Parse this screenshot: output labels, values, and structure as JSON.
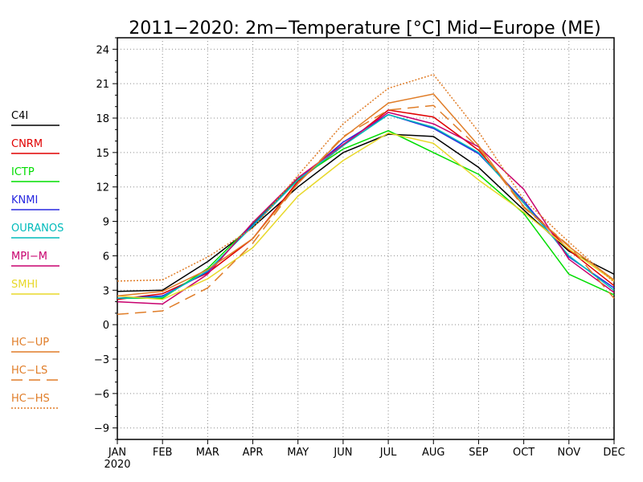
{
  "chart_data": {
    "type": "line",
    "title": "2011−2020: 2m−Temperature [°C] Mid−Europe (ME)",
    "xlabel": "",
    "ylabel": "",
    "categories": [
      "JAN",
      "FEB",
      "MAR",
      "APR",
      "MAY",
      "JUN",
      "JUL",
      "AUG",
      "SEP",
      "OCT",
      "NOV",
      "DEC"
    ],
    "x_year_label": "2020",
    "ylim": [
      -10,
      25
    ],
    "yticks": [
      -9,
      -6,
      -3,
      0,
      3,
      6,
      9,
      12,
      15,
      18,
      21,
      24
    ],
    "ytick_labels": [
      "−9",
      "−6",
      "−3",
      "0",
      "3",
      "6",
      "9",
      "12",
      "15",
      "18",
      "21",
      "24"
    ],
    "grid": true,
    "legend_position": "left",
    "series": [
      {
        "name": "C4I",
        "color": "#000000",
        "dash": "solid",
        "values": [
          2.9,
          3.0,
          5.5,
          8.5,
          12.0,
          15.0,
          16.6,
          16.4,
          13.7,
          10.0,
          6.4,
          4.4
        ]
      },
      {
        "name": "CNRM",
        "color": "#e00000",
        "dash": "solid",
        "values": [
          2.2,
          2.7,
          4.5,
          7.5,
          12.5,
          15.6,
          18.7,
          18.1,
          15.2,
          10.6,
          6.5,
          3.4
        ]
      },
      {
        "name": "ICTP",
        "color": "#00dd00",
        "dash": "solid",
        "values": [
          2.3,
          2.3,
          4.9,
          8.8,
          12.7,
          15.3,
          16.9,
          15.0,
          13.1,
          9.7,
          4.4,
          2.6
        ]
      },
      {
        "name": "KNMI",
        "color": "#2828e0",
        "dash": "solid",
        "values": [
          2.3,
          2.5,
          4.6,
          8.7,
          12.6,
          15.9,
          18.3,
          17.1,
          14.9,
          10.8,
          5.9,
          3.2
        ]
      },
      {
        "name": "OURANOS",
        "color": "#00bbbb",
        "dash": "solid",
        "values": [
          2.3,
          2.4,
          4.7,
          8.6,
          12.6,
          15.6,
          18.3,
          17.2,
          15.0,
          10.6,
          6.0,
          3.0
        ]
      },
      {
        "name": "MPI−M",
        "color": "#c8006e",
        "dash": "solid",
        "values": [
          2.0,
          1.8,
          4.4,
          8.9,
          12.8,
          15.7,
          18.5,
          17.5,
          15.5,
          11.8,
          5.7,
          2.8
        ]
      },
      {
        "name": "SMHI",
        "color": "#e8d82a",
        "dash": "solid",
        "values": [
          2.5,
          2.2,
          4.0,
          6.7,
          11.2,
          14.3,
          16.7,
          15.8,
          12.6,
          9.8,
          6.6,
          3.8
        ]
      },
      {
        "name": "HC−UP",
        "color": "#e07d28",
        "dash": "solid",
        "values": [
          2.5,
          2.9,
          4.8,
          7.5,
          12.3,
          16.3,
          19.3,
          20.1,
          15.6,
          10.3,
          6.8,
          3.9
        ]
      },
      {
        "name": "HC−LS",
        "color": "#e07d28",
        "dash": "long",
        "values": [
          0.9,
          1.2,
          3.2,
          7.1,
          12.3,
          16.4,
          18.7,
          19.1,
          15.4,
          10.2,
          6.9,
          2.3
        ]
      },
      {
        "name": "HC−HS",
        "color": "#e07d28",
        "dash": "short",
        "values": [
          3.8,
          3.9,
          5.9,
          8.4,
          13.0,
          17.5,
          20.6,
          21.8,
          16.8,
          10.9,
          7.2,
          3.7
        ]
      }
    ]
  }
}
